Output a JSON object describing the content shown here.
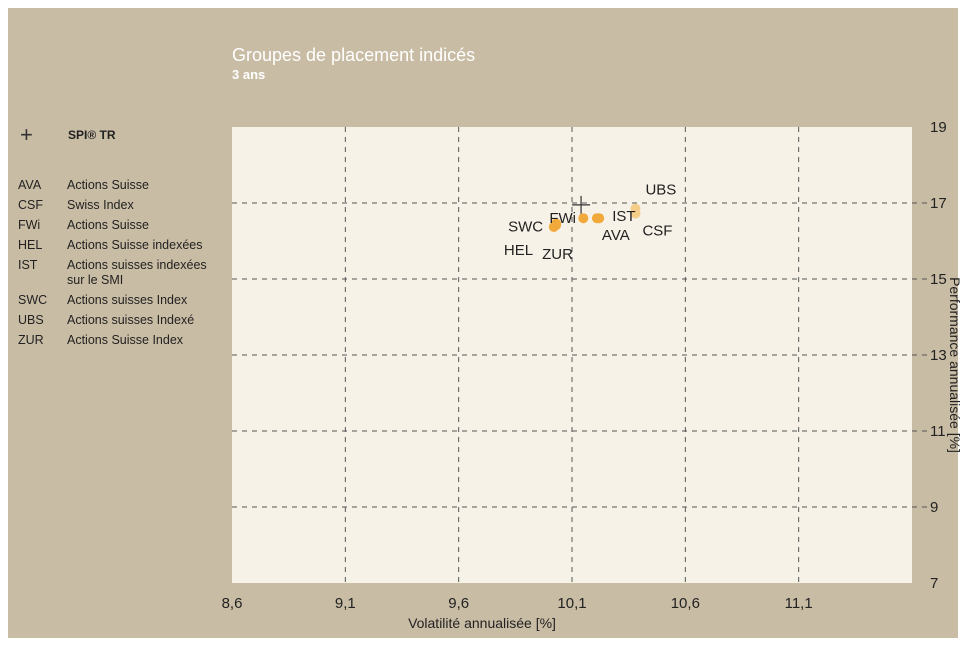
{
  "title": "Groupes de placement indicés",
  "subtitle": "3 ans",
  "legend": {
    "reference": {
      "symbol": "+",
      "label": "SPI® TR"
    },
    "items": [
      {
        "code": "AVA",
        "name": "Actions Suisse"
      },
      {
        "code": "CSF",
        "name": "Swiss Index"
      },
      {
        "code": "FWi",
        "name": "Actions Suisse"
      },
      {
        "code": "HEL",
        "name": "Actions Suisse indexées"
      },
      {
        "code": "IST",
        "name": "Actions suisses indexées sur le SMI"
      },
      {
        "code": "SWC",
        "name": "Actions suisses Index"
      },
      {
        "code": "UBS",
        "name": "Actions suisses Indexé"
      },
      {
        "code": "ZUR",
        "name": "Actions Suisse Index"
      }
    ]
  },
  "colors": {
    "background": "#c9bca4",
    "plot_area": "#f7f2e8",
    "point": "#f2a93b",
    "point_light": "#f5cf8a",
    "grid": "#555555",
    "text": "#222222",
    "white": "#ffffff"
  },
  "chart_data": {
    "type": "scatter",
    "title": "Groupes de placement indicés",
    "subtitle": "3 ans",
    "xlabel": "Volatilité annualisée [%]",
    "ylabel": "Performance annualisée [%]",
    "xlim": [
      8.6,
      11.6
    ],
    "ylim": [
      7,
      19
    ],
    "x_ticks": [
      8.6,
      9.1,
      9.6,
      10.1,
      10.6,
      11.1
    ],
    "x_tick_labels": [
      "8,6",
      "9,1",
      "9,6",
      "10,1",
      "10,6",
      "11,1"
    ],
    "y_ticks": [
      7,
      9,
      11,
      13,
      15,
      17,
      19
    ],
    "y_tick_labels": [
      "7",
      "9",
      "11",
      "13",
      "15",
      "17",
      "19"
    ],
    "y_axis_side": "right",
    "grid": true,
    "grid_style": "dashed",
    "reference_point": {
      "label": "SPI® TR",
      "x": 10.14,
      "y": 16.95
    },
    "points": [
      {
        "code": "AVA",
        "x": 10.21,
        "y": 16.6
      },
      {
        "code": "CSF",
        "x": 10.38,
        "y": 16.72
      },
      {
        "code": "FWi",
        "x": 10.15,
        "y": 16.6
      },
      {
        "code": "HEL",
        "x": 10.02,
        "y": 16.37
      },
      {
        "code": "IST",
        "x": 10.22,
        "y": 16.6
      },
      {
        "code": "SWC",
        "x": 10.03,
        "y": 16.46
      },
      {
        "code": "UBS",
        "x": 10.38,
        "y": 16.85
      },
      {
        "code": "ZUR",
        "x": 10.03,
        "y": 16.42
      }
    ]
  }
}
